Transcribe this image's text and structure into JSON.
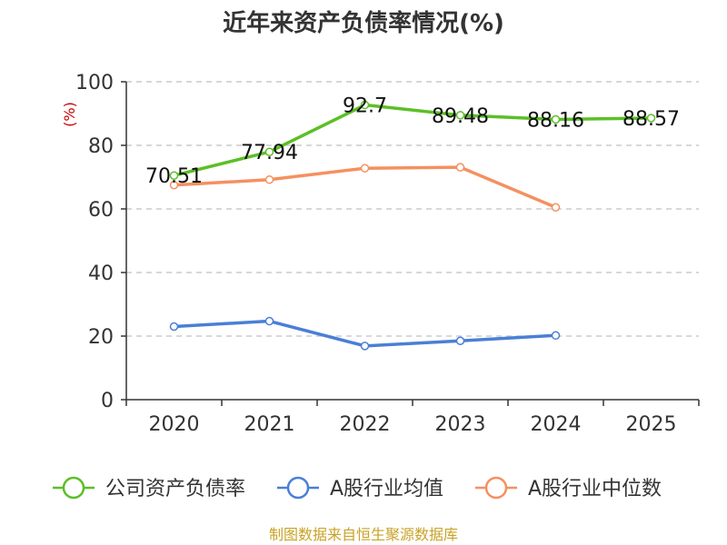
{
  "chart_data": {
    "type": "line",
    "title": "近年来资产负债率情况(%)",
    "ylabel": "(%)",
    "xlabel": "",
    "categories": [
      "2020",
      "2021",
      "2022",
      "2023",
      "2024",
      "2025"
    ],
    "ylim": [
      0,
      100
    ],
    "yticks": [
      0,
      20,
      40,
      60,
      80,
      100
    ],
    "grid": true,
    "legend_position": "bottom",
    "series": [
      {
        "name": "公司资产负债率",
        "color": "#5cbf26",
        "values": [
          70.51,
          77.94,
          92.7,
          89.48,
          88.16,
          88.57
        ],
        "labels": [
          "70.51",
          "77.94",
          "92.7",
          "89.48",
          "88.16",
          "88.57"
        ]
      },
      {
        "name": "A股行业均值",
        "color": "#4a7fd6",
        "values": [
          23.0,
          24.7,
          16.9,
          18.5,
          20.2,
          null
        ],
        "labels": null
      },
      {
        "name": "A股行业中位数",
        "color": "#f59060",
        "values": [
          67.5,
          69.2,
          72.8,
          73.1,
          60.5,
          null
        ],
        "labels": null
      }
    ],
    "source": "制图数据来自恒生聚源数据库"
  }
}
